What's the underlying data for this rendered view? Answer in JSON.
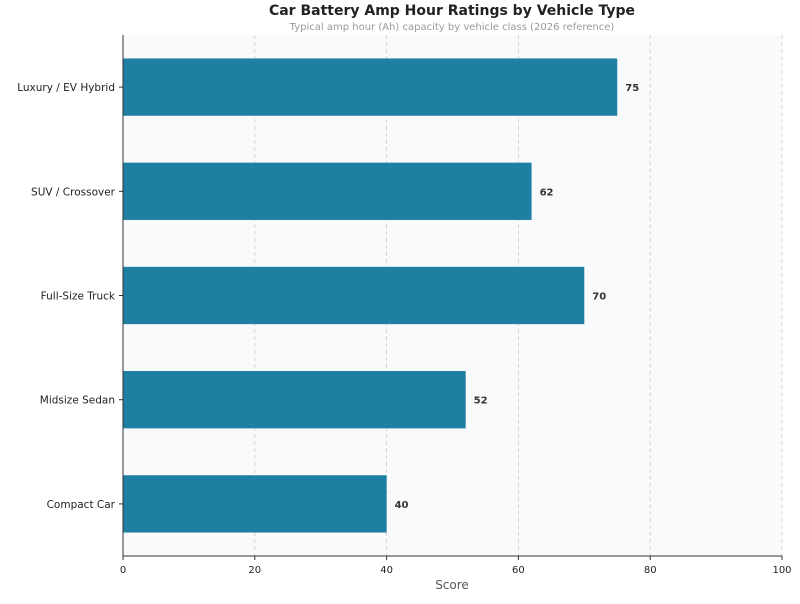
{
  "chart_data": {
    "type": "bar",
    "orientation": "horizontal",
    "title": "Car Battery Amp Hour Ratings by Vehicle Type",
    "subtitle": "Typical amp hour (Ah) capacity by vehicle class (2026 reference)",
    "xlabel": "Score",
    "ylabel": "",
    "categories": [
      "Compact Car",
      "Midsize Sedan",
      "Full-Size Truck",
      "SUV / Crossover",
      "Luxury / EV Hybrid"
    ],
    "values": [
      40,
      52,
      70,
      62,
      75
    ],
    "xlim": [
      0,
      100
    ],
    "xticks": [
      0,
      20,
      40,
      60,
      80,
      100
    ],
    "grid": "vertical dashed",
    "bar_color": "#1f7fa3",
    "background_color": "#f8fafc"
  }
}
